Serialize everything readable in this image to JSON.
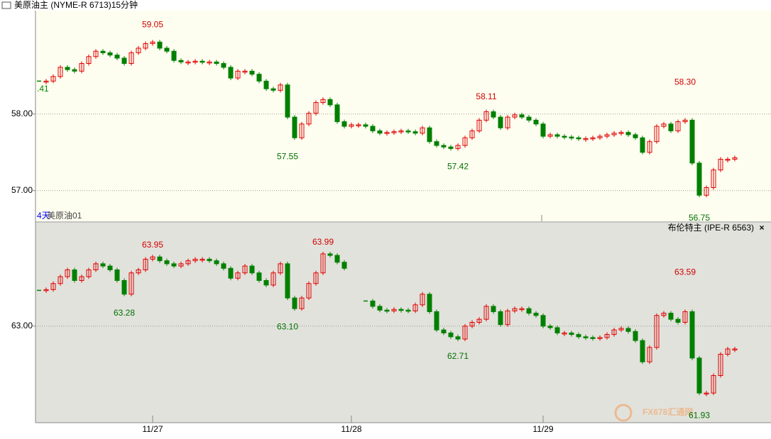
{
  "watermark": "FX678汇通网",
  "chart_data": [
    {
      "type": "candlestick",
      "title": "美原油主 (NYME-R 6713)15分钟",
      "period_label": "4天",
      "contract_label": "美原油01",
      "edge_label": ".41",
      "up_color": "#e00000",
      "down_color": "#008000",
      "grid": true,
      "ylim": [
        56.6,
        59.35
      ],
      "yticks": [
        {
          "value": 58,
          "label": "58.00"
        },
        {
          "value": 57,
          "label": "57.00"
        }
      ],
      "values": [
        58.43,
        58.43,
        58.49,
        58.61,
        58.58,
        58.56,
        58.66,
        58.75,
        58.82,
        58.8,
        58.77,
        58.73,
        58.66,
        58.8,
        58.86,
        58.92,
        58.94,
        58.86,
        58.82,
        58.7,
        58.68,
        58.68,
        58.69,
        58.68,
        58.68,
        58.66,
        58.61,
        58.47,
        58.56,
        58.56,
        58.52,
        58.43,
        58.33,
        58.31,
        58.38,
        57.96,
        57.69,
        57.87,
        58.01,
        58.15,
        58.19,
        58.12,
        57.9,
        57.84,
        57.86,
        57.86,
        57.84,
        57.78,
        57.75,
        57.76,
        57.77,
        57.78,
        57.77,
        57.75,
        57.82,
        57.64,
        57.59,
        57.57,
        57.55,
        57.59,
        57.69,
        57.78,
        57.92,
        58.03,
        57.96,
        57.82,
        57.96,
        57.99,
        57.96,
        57.92,
        57.87,
        57.71,
        57.73,
        57.71,
        57.7,
        57.69,
        57.68,
        57.68,
        57.69,
        57.71,
        57.73,
        57.75,
        57.76,
        57.73,
        57.69,
        57.5,
        57.64,
        57.84,
        57.87,
        57.78,
        57.9,
        57.92,
        57.36,
        56.94,
        57.04,
        57.27,
        57.41,
        57.41,
        57.43
      ],
      "annotations": [
        {
          "index": 16,
          "value": 59.05,
          "label": "59.05"
        },
        {
          "index": 35,
          "value": 57.55,
          "label": "57.55"
        },
        {
          "index": 59,
          "value": 57.42,
          "label": "57.42"
        },
        {
          "index": 63,
          "value": 58.11,
          "label": "58.11"
        },
        {
          "index": 91,
          "value": 58.3,
          "label": "58.30"
        },
        {
          "index": 93,
          "value": 56.75,
          "label": "56.75"
        }
      ]
    },
    {
      "type": "candlestick",
      "title": "布伦特主 (IPE-R 6563)",
      "close": "×",
      "up_color": "#e00000",
      "down_color": "#008000",
      "grid": true,
      "ylim": [
        61.73,
        64.36
      ],
      "yticks": [
        {
          "value": 63,
          "label": "63.00"
        }
      ],
      "xticks": [
        {
          "value": 16,
          "label": "11/27"
        },
        {
          "value": 44,
          "label": "11/28"
        },
        {
          "value": 71,
          "label": "11/29"
        }
      ],
      "values": [
        63.47,
        63.48,
        63.56,
        63.65,
        63.74,
        63.6,
        63.65,
        63.74,
        63.82,
        63.79,
        63.74,
        63.6,
        63.42,
        63.7,
        63.74,
        63.88,
        63.91,
        63.86,
        63.82,
        63.79,
        63.82,
        63.86,
        63.88,
        63.88,
        63.86,
        63.82,
        63.76,
        63.63,
        63.7,
        63.79,
        63.7,
        63.6,
        63.54,
        63.7,
        63.82,
        63.37,
        63.23,
        63.37,
        63.56,
        63.7,
        63.95,
        63.93,
        63.84,
        63.76,
        null,
        null,
        63.33,
        63.26,
        63.21,
        63.2,
        63.22,
        63.21,
        63.2,
        63.28,
        63.42,
        63.19,
        62.95,
        62.91,
        62.86,
        62.83,
        63.0,
        63.05,
        63.09,
        63.26,
        63.19,
        63.02,
        63.2,
        63.23,
        63.23,
        63.17,
        63.14,
        63.0,
        62.98,
        62.91,
        62.91,
        62.89,
        62.86,
        62.85,
        62.84,
        62.85,
        62.89,
        62.95,
        62.97,
        62.93,
        62.81,
        62.53,
        62.72,
        63.14,
        63.17,
        63.09,
        63.05,
        63.19,
        62.58,
        62.12,
        62.12,
        62.35,
        62.63,
        62.7,
        62.7
      ],
      "annotations": [
        {
          "index": 16,
          "value": 63.95,
          "label": "63.95"
        },
        {
          "index": 12,
          "value": 63.28,
          "label": "63.28"
        },
        {
          "index": 40,
          "value": 63.99,
          "label": "63.99"
        },
        {
          "index": 35,
          "value": 63.1,
          "label": "63.10"
        },
        {
          "index": 59,
          "value": 62.71,
          "label": "62.71"
        },
        {
          "index": 91,
          "value": 63.59,
          "label": "63.59"
        },
        {
          "index": 93,
          "value": 61.93,
          "label": "61.93"
        }
      ]
    }
  ]
}
